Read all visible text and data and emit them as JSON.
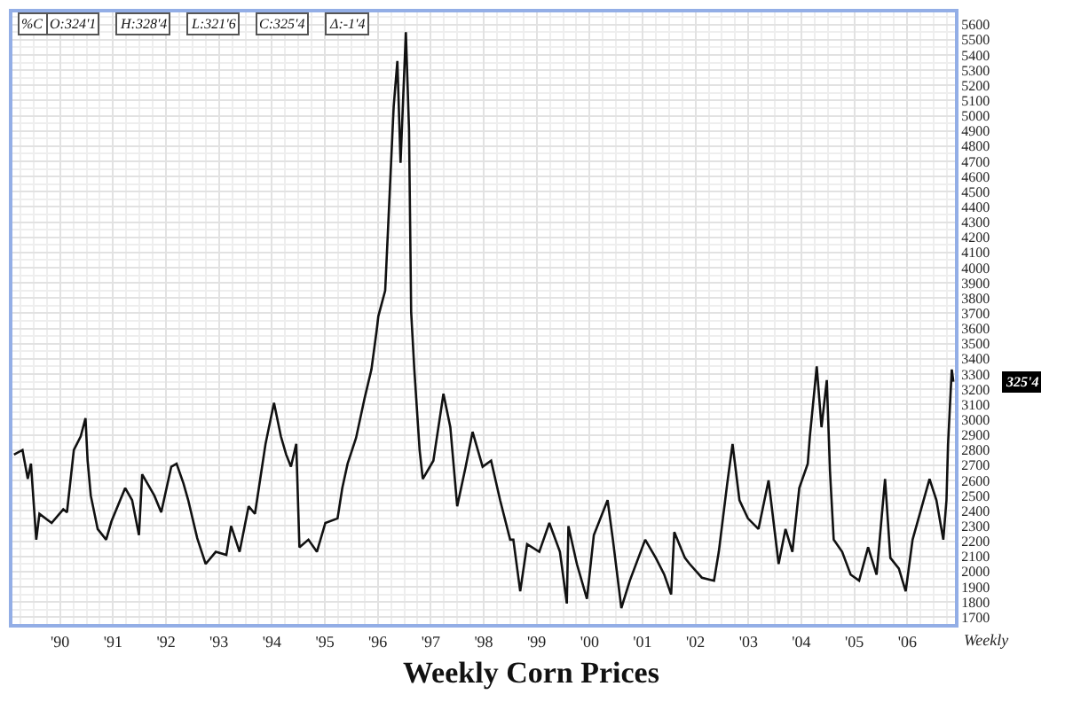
{
  "chart_data": {
    "type": "line",
    "title": "Weekly Corn Prices",
    "x": [
      1989.13,
      1989.29,
      1989.39,
      1989.45,
      1989.55,
      1989.61,
      1989.84,
      1990.06,
      1990.13,
      1990.26,
      1990.39,
      1990.48,
      1990.52,
      1990.58,
      1990.71,
      1990.87,
      1990.97,
      1991.23,
      1991.36,
      1991.49,
      1991.55,
      1991.78,
      1991.91,
      1992.1,
      1992.2,
      1992.33,
      1992.42,
      1992.59,
      1992.75,
      1992.94,
      1993.14,
      1993.23,
      1993.39,
      1993.56,
      1993.68,
      1993.88,
      1994.04,
      1994.17,
      1994.27,
      1994.36,
      1994.46,
      1994.52,
      1994.69,
      1994.85,
      1995.01,
      1995.24,
      1995.33,
      1995.43,
      1995.59,
      1995.75,
      1995.88,
      1995.98,
      1996.01,
      1996.14,
      1996.3,
      1996.37,
      1996.43,
      1996.53,
      1996.59,
      1996.63,
      1996.69,
      1996.79,
      1996.85,
      1997.05,
      1997.24,
      1997.37,
      1997.5,
      1997.66,
      1997.79,
      1997.98,
      1998.14,
      1998.31,
      1998.5,
      1998.56,
      1998.69,
      1998.82,
      1999.05,
      1999.24,
      1999.44,
      1999.57,
      1999.6,
      1999.76,
      1999.95,
      2000.08,
      2000.34,
      2000.44,
      2000.6,
      2000.76,
      2001.05,
      2001.25,
      2001.41,
      2001.54,
      2001.6,
      2001.8,
      2001.89,
      2002.12,
      2002.35,
      2002.44,
      2002.6,
      2002.7,
      2002.83,
      2002.99,
      2003.19,
      2003.38,
      2003.57,
      2003.7,
      2003.83,
      2003.96,
      2004.12,
      2004.16,
      2004.29,
      2004.38,
      2004.48,
      2004.54,
      2004.61,
      2004.77,
      2004.93,
      2005.09,
      2005.26,
      2005.42,
      2005.58,
      2005.68,
      2005.84,
      2005.97,
      2006.1,
      2006.26,
      2006.42,
      2006.55,
      2006.68,
      2006.74,
      2006.77,
      2006.84,
      2006.87
    ],
    "series": [
      {
        "color": "#111111",
        "values": [
          2770,
          2800,
          2610,
          2710,
          2210,
          2380,
          2320,
          2410,
          2390,
          2800,
          2890,
          3010,
          2730,
          2500,
          2280,
          2210,
          2330,
          2550,
          2470,
          2240,
          2640,
          2500,
          2390,
          2690,
          2710,
          2580,
          2470,
          2220,
          2050,
          2130,
          2110,
          2300,
          2130,
          2430,
          2380,
          2840,
          3110,
          2890,
          2770,
          2690,
          2840,
          2160,
          2210,
          2130,
          2320,
          2350,
          2550,
          2710,
          2880,
          3140,
          3330,
          3590,
          3680,
          3850,
          5060,
          5360,
          4690,
          5550,
          4910,
          3710,
          3330,
          2800,
          2610,
          2730,
          3170,
          2950,
          2430,
          2690,
          2920,
          2690,
          2730,
          2470,
          2210,
          2210,
          1870,
          2180,
          2130,
          2320,
          2130,
          1790,
          2300,
          2050,
          1820,
          2240,
          2470,
          2210,
          1760,
          1940,
          2210,
          2090,
          1980,
          1850,
          2260,
          2090,
          2050,
          1960,
          1940,
          2130,
          2580,
          2840,
          2470,
          2350,
          2280,
          2600,
          2050,
          2280,
          2130,
          2550,
          2710,
          2890,
          3350,
          2950,
          3260,
          2660,
          2210,
          2130,
          1980,
          1940,
          2160,
          1980,
          2610,
          2090,
          2020,
          1870,
          2210,
          2410,
          2610,
          2470,
          2210,
          2470,
          2840,
          3330,
          3250
        ]
      }
    ],
    "xlim": [
      1989.1,
      2006.9
    ],
    "ylim": [
      1655,
      5680
    ],
    "xticks": [
      {
        "value": 1990,
        "label": "'90"
      },
      {
        "value": 1991,
        "label": "'91"
      },
      {
        "value": 1992,
        "label": "'92"
      },
      {
        "value": 1993,
        "label": "'93"
      },
      {
        "value": 1994,
        "label": "'94"
      },
      {
        "value": 1995,
        "label": "'95"
      },
      {
        "value": 1996,
        "label": "'96"
      },
      {
        "value": 1997,
        "label": "'97"
      },
      {
        "value": 1998,
        "label": "'98"
      },
      {
        "value": 1999,
        "label": "'99"
      },
      {
        "value": 2000,
        "label": "'00"
      },
      {
        "value": 2001,
        "label": "'01"
      },
      {
        "value": 2002,
        "label": "'02"
      },
      {
        "value": 2003,
        "label": "'03"
      },
      {
        "value": 2004,
        "label": "'04"
      },
      {
        "value": 2005,
        "label": "'05"
      },
      {
        "value": 2006,
        "label": "'06"
      }
    ],
    "yticks": [
      1700,
      1800,
      1900,
      2000,
      2100,
      2200,
      2300,
      2400,
      2500,
      2600,
      2700,
      2800,
      2900,
      3000,
      3100,
      3200,
      3300,
      3400,
      3500,
      3600,
      3700,
      3800,
      3900,
      4000,
      4100,
      4200,
      4300,
      4400,
      4500,
      4600,
      4700,
      4800,
      4900,
      5000,
      5100,
      5200,
      5300,
      5400,
      5500,
      5600
    ],
    "grid": true,
    "marker": "none",
    "line_style": "solid",
    "annotations": [
      "%C",
      "O:324'1",
      "H:328'4",
      "L:321'6",
      "C:325'4",
      "Δ:-1'4",
      "Weekly",
      "325'4"
    ]
  }
}
